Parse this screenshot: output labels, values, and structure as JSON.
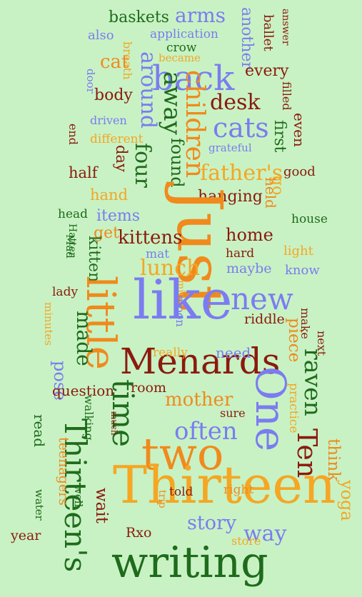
{
  "palette": {
    "background": "#c8f2c4",
    "dark_green": "#1f6b1c",
    "orange": "#f08a1c",
    "periwinkle": "#7b7cf0",
    "maroon": "#8b1a0e",
    "amber": "#f5a623"
  },
  "words": [
    {
      "text": "baskets",
      "color": "#1f6b1c"
    },
    {
      "text": "arms",
      "color": "#7b7cf0"
    },
    {
      "text": "another",
      "color": "#7b7cf0"
    },
    {
      "text": "ballet",
      "color": "#8b1a0e"
    },
    {
      "text": "answer",
      "color": "#8b1a0e"
    },
    {
      "text": "also",
      "color": "#7b7cf0"
    },
    {
      "text": "application",
      "color": "#7b7cf0"
    },
    {
      "text": "crow",
      "color": "#1f6b1c"
    },
    {
      "text": "became",
      "color": "#f5a623"
    },
    {
      "text": "breath",
      "color": "#f5a623"
    },
    {
      "text": "cat",
      "color": "#f08a1c"
    },
    {
      "text": "door",
      "color": "#7b7cf0"
    },
    {
      "text": "around",
      "color": "#7b7cf0"
    },
    {
      "text": "back",
      "color": "#7b7cf0"
    },
    {
      "text": "every",
      "color": "#8b1a0e"
    },
    {
      "text": "body",
      "color": "#8b1a0e"
    },
    {
      "text": "away",
      "color": "#1f6b1c"
    },
    {
      "text": "children",
      "color": "#f08a1c"
    },
    {
      "text": "desk",
      "color": "#8b1a0e"
    },
    {
      "text": "filled",
      "color": "#8b1a0e"
    },
    {
      "text": "driven",
      "color": "#7b7cf0"
    },
    {
      "text": "cats",
      "color": "#7b7cf0"
    },
    {
      "text": "end",
      "color": "#8b1a0e"
    },
    {
      "text": "different",
      "color": "#f5a623"
    },
    {
      "text": "grateful",
      "color": "#7b7cf0"
    },
    {
      "text": "first",
      "color": "#1f6b1c"
    },
    {
      "text": "even",
      "color": "#8b1a0e"
    },
    {
      "text": "day",
      "color": "#8b1a0e"
    },
    {
      "text": "four",
      "color": "#1f6b1c"
    },
    {
      "text": "found",
      "color": "#1f6b1c"
    },
    {
      "text": "father's",
      "color": "#f5a623"
    },
    {
      "text": "good",
      "color": "#8b1a0e"
    },
    {
      "text": "half",
      "color": "#8b1a0e"
    },
    {
      "text": "go",
      "color": "#f5a623"
    },
    {
      "text": "held",
      "color": "#f08a1c"
    },
    {
      "text": "hand",
      "color": "#f5a623"
    },
    {
      "text": "hanging",
      "color": "#8b1a0e"
    },
    {
      "text": "head",
      "color": "#1f6b1c"
    },
    {
      "text": "items",
      "color": "#7b7cf0"
    },
    {
      "text": "Just",
      "color": "#f08a1c"
    },
    {
      "text": "house",
      "color": "#1f6b1c"
    },
    {
      "text": "Hatter",
      "color": "#1f6b1c"
    },
    {
      "text": "get",
      "color": "#f08a1c"
    },
    {
      "text": "kittens",
      "color": "#8b1a0e"
    },
    {
      "text": "home",
      "color": "#8b1a0e"
    },
    {
      "text": "Mad",
      "color": "#1f6b1c"
    },
    {
      "text": "kitten",
      "color": "#1f6b1c"
    },
    {
      "text": "mat",
      "color": "#7b7cf0"
    },
    {
      "text": "hard",
      "color": "#8b1a0e"
    },
    {
      "text": "light",
      "color": "#f5a623"
    },
    {
      "text": "lunch",
      "color": "#f5a623"
    },
    {
      "text": "maybe",
      "color": "#7b7cf0"
    },
    {
      "text": "know",
      "color": "#7b7cf0"
    },
    {
      "text": "mine",
      "color": "#f5a623"
    },
    {
      "text": "lady",
      "color": "#8b1a0e"
    },
    {
      "text": "little",
      "color": "#f08a1c"
    },
    {
      "text": "like",
      "color": "#7b7cf0"
    },
    {
      "text": "moon",
      "color": "#7b7cf0"
    },
    {
      "text": "new",
      "color": "#7b7cf0"
    },
    {
      "text": "minutes",
      "color": "#f5a623"
    },
    {
      "text": "riddle",
      "color": "#8b1a0e"
    },
    {
      "text": "make",
      "color": "#8b1a0e"
    },
    {
      "text": "made",
      "color": "#1f6b1c"
    },
    {
      "text": "piece",
      "color": "#f08a1c"
    },
    {
      "text": "next",
      "color": "#8b1a0e"
    },
    {
      "text": "Menards",
      "color": "#8b1a0e"
    },
    {
      "text": "really",
      "color": "#f5a623"
    },
    {
      "text": "need",
      "color": "#7b7cf0"
    },
    {
      "text": "pose",
      "color": "#7b7cf0"
    },
    {
      "text": "raven",
      "color": "#1f6b1c"
    },
    {
      "text": "question",
      "color": "#8b1a0e"
    },
    {
      "text": "room",
      "color": "#8b1a0e"
    },
    {
      "text": "mother",
      "color": "#f08a1c"
    },
    {
      "text": "One",
      "color": "#7b7cf0"
    },
    {
      "text": "time",
      "color": "#1f6b1c"
    },
    {
      "text": "practice",
      "color": "#f5a623"
    },
    {
      "text": "sure",
      "color": "#8b1a0e"
    },
    {
      "text": "walking",
      "color": "#1f6b1c"
    },
    {
      "text": "much",
      "color": "#8b1a0e"
    },
    {
      "text": "often",
      "color": "#7b7cf0"
    },
    {
      "text": "Thirteen's",
      "color": "#1f6b1c"
    },
    {
      "text": "read",
      "color": "#1f6b1c"
    },
    {
      "text": "two",
      "color": "#f08a1c"
    },
    {
      "text": "Ten",
      "color": "#8b1a0e"
    },
    {
      "text": "think",
      "color": "#f08a1c"
    },
    {
      "text": "yoga",
      "color": "#f5a623"
    },
    {
      "text": "teenagers",
      "color": "#f08a1c"
    },
    {
      "text": "Thirteen",
      "color": "#f5a623"
    },
    {
      "text": "told",
      "color": "#8b1a0e"
    },
    {
      "text": "right",
      "color": "#f08a1c"
    },
    {
      "text": "water",
      "color": "#1f6b1c"
    },
    {
      "text": "well",
      "color": "#1f6b1c"
    },
    {
      "text": "wait",
      "color": "#8b1a0e"
    },
    {
      "text": "trip",
      "color": "#f08a1c"
    },
    {
      "text": "story",
      "color": "#7b7cf0"
    },
    {
      "text": "way",
      "color": "#7b7cf0"
    },
    {
      "text": "year",
      "color": "#8b1a0e"
    },
    {
      "text": "Rxo",
      "color": "#8b1a0e"
    },
    {
      "text": "store",
      "color": "#f5a623"
    },
    {
      "text": "writing",
      "color": "#1f6b1c"
    }
  ]
}
